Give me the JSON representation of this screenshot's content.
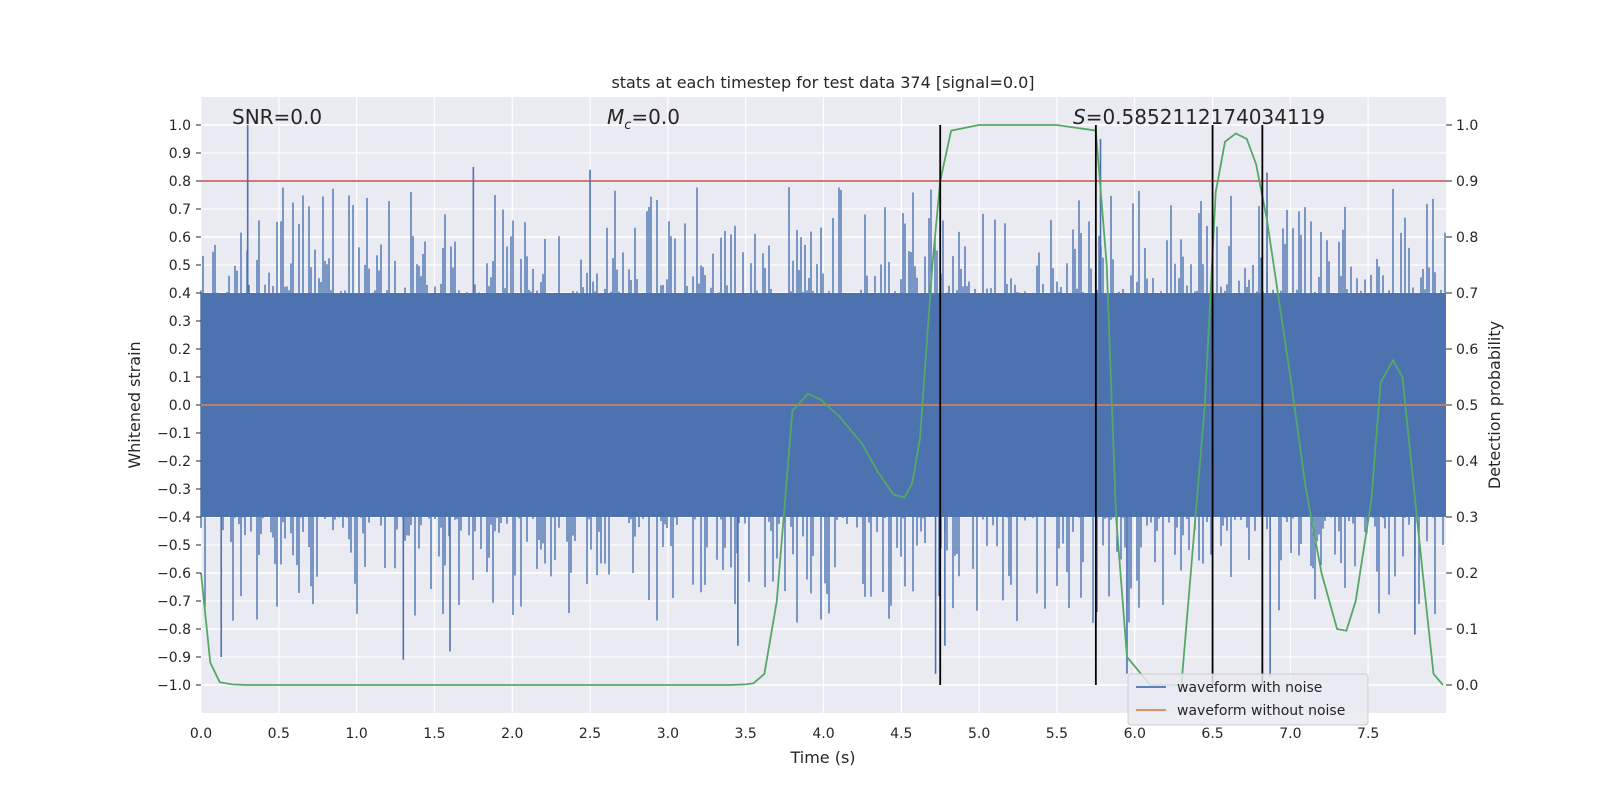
{
  "chart_data": {
    "type": "line",
    "title": "stats at each timestep for test data 374 [signal=0.0]",
    "xlabel": "Time (s)",
    "ylabel": "Whitened strain",
    "y2label": "Detection probability",
    "xlim": [
      0.0,
      8.0
    ],
    "ylim": [
      -1.1,
      1.1
    ],
    "y2lim": [
      -0.05,
      1.05
    ],
    "x_ticks": [
      "0.0",
      "0.5",
      "1.0",
      "1.5",
      "2.0",
      "2.5",
      "3.0",
      "3.5",
      "4.0",
      "4.5",
      "5.0",
      "5.5",
      "6.0",
      "6.5",
      "7.0",
      "7.5"
    ],
    "x_tick_values": [
      0.0,
      0.5,
      1.0,
      1.5,
      2.0,
      2.5,
      3.0,
      3.5,
      4.0,
      4.5,
      5.0,
      5.5,
      6.0,
      6.5,
      7.0,
      7.5
    ],
    "y_ticks": [
      "1.0",
      "0.9",
      "0.8",
      "0.7",
      "0.6",
      "0.5",
      "0.4",
      "0.3",
      "0.2",
      "0.1",
      "0.0",
      "−0.1",
      "−0.2",
      "−0.3",
      "−0.4",
      "−0.5",
      "−0.6",
      "−0.7",
      "−0.8",
      "−0.9",
      "−1.0"
    ],
    "y_tick_values": [
      1.0,
      0.9,
      0.8,
      0.7,
      0.6,
      0.5,
      0.4,
      0.3,
      0.2,
      0.1,
      0.0,
      -0.1,
      -0.2,
      -0.3,
      -0.4,
      -0.5,
      -0.6,
      -0.7,
      -0.8,
      -0.9,
      -1.0
    ],
    "y2_ticks": [
      "1.0",
      "0.9",
      "0.8",
      "0.7",
      "0.6",
      "0.5",
      "0.4",
      "0.3",
      "0.2",
      "0.1",
      "0.0"
    ],
    "y2_tick_values": [
      1.0,
      0.9,
      0.8,
      0.7,
      0.6,
      0.5,
      0.4,
      0.3,
      0.2,
      0.1,
      0.0
    ],
    "annotations": {
      "snr": "SNR=0.0",
      "mc_symbol": "M",
      "mc_sub": "c",
      "mc_value": "=0.0",
      "s_symbol": "S",
      "s_value": "=0.5852112174034119"
    },
    "threshold": {
      "value": 0.8,
      "axis": "y2_as_primary",
      "color": "#c44e52"
    },
    "vertical_lines": [
      4.75,
      5.75,
      6.5,
      6.82
    ],
    "vertical_line_range": [
      -1.0,
      1.0
    ],
    "series": [
      {
        "name": "waveform with noise",
        "color": "#4c72b0",
        "kind": "noise",
        "envelope": 0.4,
        "spike_peaks": [
          {
            "x": 0.3,
            "y": 1.0
          },
          {
            "x": 1.75,
            "y": 0.85
          },
          {
            "x": 2.5,
            "y": 0.84
          },
          {
            "x": 0.13,
            "y": -0.9
          },
          {
            "x": 1.3,
            "y": -0.91
          },
          {
            "x": 1.6,
            "y": -0.88
          },
          {
            "x": 3.45,
            "y": -0.86
          },
          {
            "x": 4.72,
            "y": -0.96
          },
          {
            "x": 4.78,
            "y": -0.86
          },
          {
            "x": 5.95,
            "y": -0.96
          },
          {
            "x": 6.87,
            "y": -0.97
          },
          {
            "x": 7.8,
            "y": -0.82
          },
          {
            "x": 5.78,
            "y": 0.95
          },
          {
            "x": 6.85,
            "y": 0.83
          }
        ]
      },
      {
        "name": "waveform without noise",
        "color": "#dd8452",
        "kind": "flat",
        "value": 0.0
      },
      {
        "name": "detection probability",
        "color": "#55a868",
        "kind": "line",
        "axis": "y2",
        "x": [
          0.0,
          0.06,
          0.12,
          0.2,
          0.3,
          0.5,
          1.0,
          2.0,
          3.0,
          3.4,
          3.5,
          3.55,
          3.62,
          3.7,
          3.8,
          3.9,
          3.98,
          4.1,
          4.25,
          4.35,
          4.45,
          4.52,
          4.57,
          4.62,
          4.7,
          4.75,
          4.82,
          5.0,
          5.5,
          5.75,
          5.82,
          5.88,
          5.95,
          6.1,
          6.3,
          6.45,
          6.52,
          6.58,
          6.65,
          6.72,
          6.78,
          6.85,
          7.0,
          7.1,
          7.2,
          7.3,
          7.36,
          7.42,
          7.52,
          7.58,
          7.66,
          7.72,
          7.85,
          7.92,
          7.98
        ],
        "y": [
          0.2,
          0.04,
          0.005,
          0.001,
          0.0,
          0.0,
          0.0,
          0.0,
          0.0,
          0.0,
          0.001,
          0.003,
          0.02,
          0.15,
          0.49,
          0.52,
          0.51,
          0.48,
          0.43,
          0.38,
          0.34,
          0.335,
          0.36,
          0.44,
          0.75,
          0.9,
          0.99,
          1.0,
          1.0,
          0.99,
          0.75,
          0.3,
          0.05,
          0.0,
          0.0,
          0.5,
          0.88,
          0.97,
          0.985,
          0.975,
          0.93,
          0.83,
          0.55,
          0.35,
          0.2,
          0.1,
          0.097,
          0.15,
          0.33,
          0.54,
          0.58,
          0.55,
          0.2,
          0.02,
          0.0
        ]
      }
    ],
    "legend": {
      "position": "lower-right",
      "entries": [
        {
          "label": "waveform with noise",
          "color": "#4c72b0"
        },
        {
          "label": "waveform without noise",
          "color": "#dd8452"
        }
      ]
    }
  }
}
